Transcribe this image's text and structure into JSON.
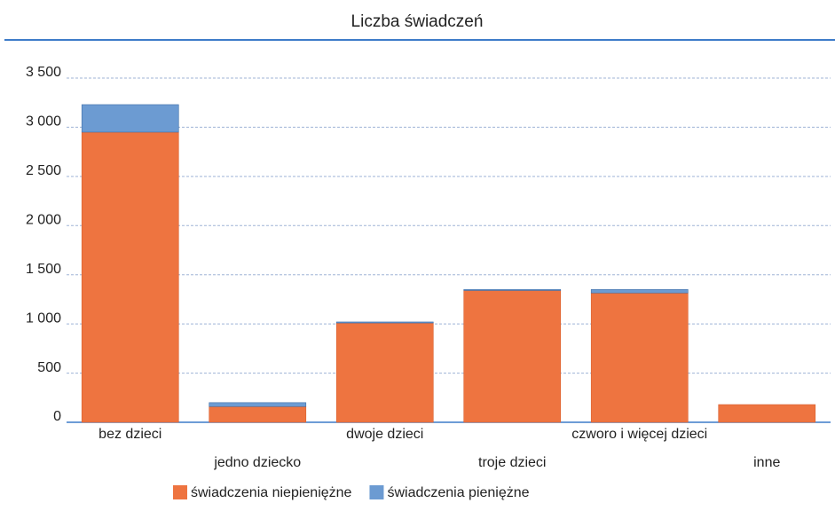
{
  "chart_data": {
    "type": "bar",
    "stacked": true,
    "title": "Liczba świadczeń",
    "categories": [
      "bez dzieci",
      "jedno dziecko",
      "dwoje dzieci",
      "troje dzieci",
      "czworo i więcej dzieci",
      "inne"
    ],
    "series": [
      {
        "name": "świadczenia niepieniężne",
        "color": "#ee7440",
        "values": [
          2950,
          160,
          1010,
          1340,
          1315,
          180
        ]
      },
      {
        "name": "świadczenia pieniężne",
        "color": "#6c9bd2",
        "values": [
          280,
          40,
          10,
          10,
          35,
          0
        ]
      }
    ],
    "ylim": [
      0,
      3500
    ],
    "yticks": [
      0,
      500,
      {
        "value": 1000,
        "label": "1 000"
      },
      {
        "value": 1500,
        "label": "1 500"
      },
      {
        "value": 2000,
        "label": "2 000"
      },
      {
        "value": 2500,
        "label": "2 500"
      },
      {
        "value": 3000,
        "label": "3 000"
      },
      {
        "value": 3500,
        "label": "3 500"
      }
    ],
    "grid": true,
    "legend": "bottom"
  }
}
